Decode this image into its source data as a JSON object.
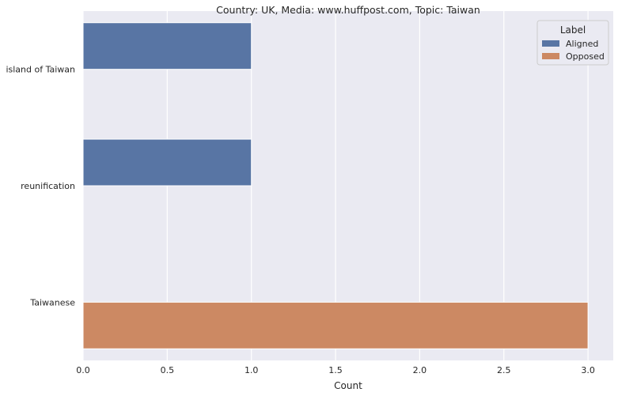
{
  "chart_data": {
    "type": "bar",
    "orientation": "horizontal",
    "title": "Country: UK, Media: www.huffpost.com, Topic: Taiwan",
    "xlabel": "Count",
    "ylabel": "",
    "categories": [
      "island of Taiwan",
      "reunification",
      "Taiwanese"
    ],
    "series": [
      {
        "name": "Aligned",
        "color": "#5875a4",
        "values": [
          1,
          1,
          null
        ]
      },
      {
        "name": "Opposed",
        "color": "#cc8963",
        "values": [
          null,
          null,
          3
        ]
      }
    ],
    "xlim": [
      0,
      3.15
    ],
    "xticks": [
      "0.0",
      "0.5",
      "1.0",
      "1.5",
      "2.0",
      "2.5",
      "3.0"
    ],
    "grid": true,
    "background": "#eaeaf2",
    "legend": {
      "title": "Label",
      "placement": "top-right"
    }
  }
}
